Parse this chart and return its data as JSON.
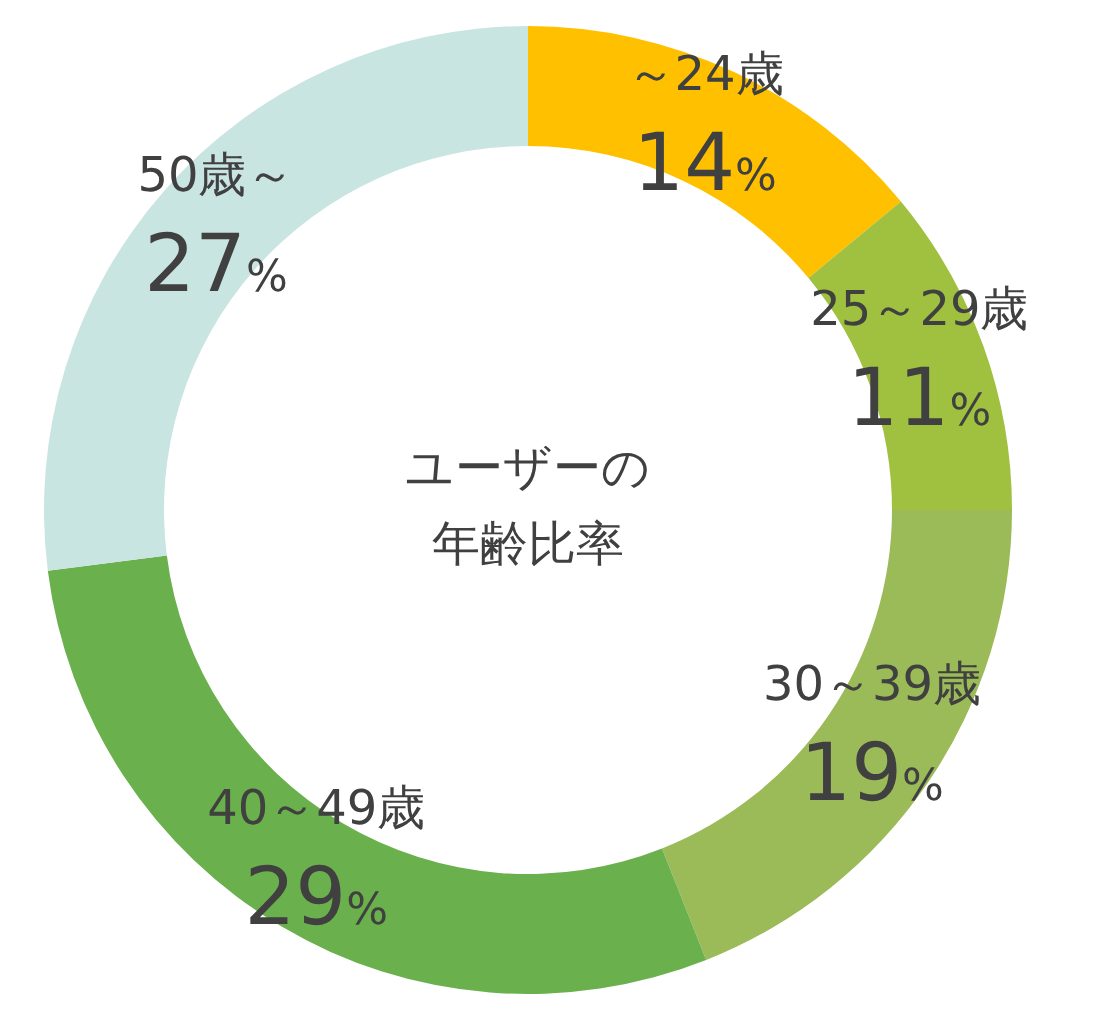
{
  "chart_data": {
    "type": "donut",
    "title": "ユーザーの年齢比率",
    "categories": [
      "～24歳",
      "25～29歳",
      "30～39歳",
      "40～49歳",
      "50歳～"
    ],
    "values": [
      14,
      11,
      19,
      29,
      27
    ],
    "colors": [
      "#ffc000",
      "#a0c040",
      "#9bbb59",
      "#6ab04c",
      "#c9e5e1"
    ],
    "value_labels": [
      "14%",
      "11%",
      "19%",
      "29%",
      "27%"
    ]
  }
}
